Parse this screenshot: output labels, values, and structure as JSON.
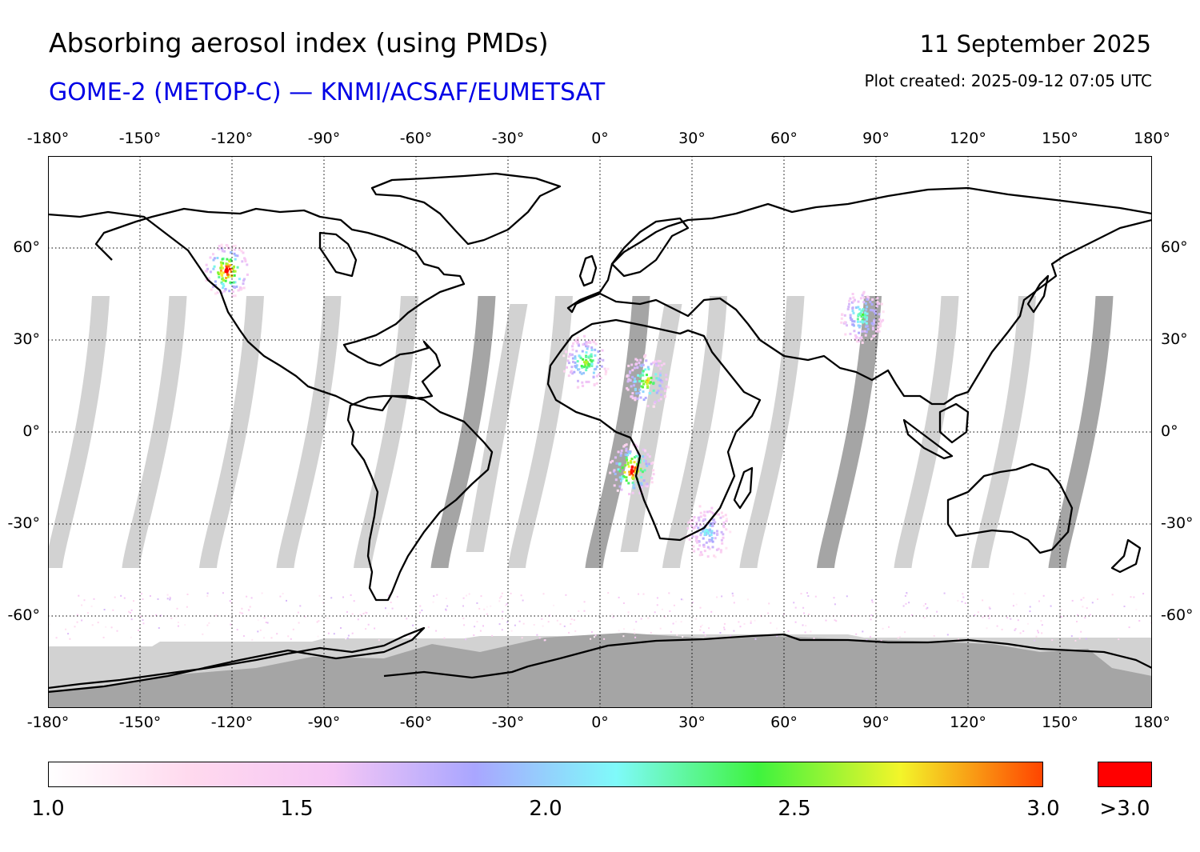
{
  "header": {
    "title": "Absorbing aerosol index (using PMDs)",
    "subtitle": "GOME-2 (METOP-C) — KNMI/ACSAF/EUMETSAT",
    "date": "11 September 2025",
    "created": "Plot created: 2025-09-12 07:05 UTC"
  },
  "map": {
    "lon_ticks": [
      "-180°",
      "-150°",
      "-120°",
      "-90°",
      "-60°",
      "-30°",
      "0°",
      "30°",
      "60°",
      "90°",
      "120°",
      "150°",
      "180°"
    ],
    "lat_ticks": [
      "60°",
      "30°",
      "0°",
      "-30°",
      "-60°"
    ],
    "lon_range": [
      -180,
      180
    ],
    "lat_range": [
      -90,
      90
    ],
    "grid": "dotted",
    "no_data_color": "#d2d2d2",
    "night_color": "#a5a5a5",
    "coastline_color": "#000000"
  },
  "colorbar": {
    "labels": [
      "1.0",
      "1.5",
      "2.0",
      "2.5",
      "3.0"
    ],
    "over_label": ">3.0",
    "range": [
      1.0,
      3.0
    ],
    "stops": [
      "#ffffff",
      "#ffd9ee",
      "#f5c6f5",
      "#a9a6ff",
      "#7ffafa",
      "#3ef33e",
      "#f3f52a",
      "#ff4500"
    ],
    "over_color": "#ff0000"
  },
  "features": [
    {
      "name": "southern-africa-plume",
      "lon": 10,
      "lat": -12,
      "value": 3.2
    },
    {
      "name": "west-africa-plume",
      "lon": -5,
      "lat": 23,
      "value": 2.6
    },
    {
      "name": "sahara-plume",
      "lon": 15,
      "lat": 17,
      "value": 2.8
    },
    {
      "name": "canada-fire",
      "lon": -122,
      "lat": 53,
      "value": 3.2
    },
    {
      "name": "central-asia-plume",
      "lon": 85,
      "lat": 38,
      "value": 2.4
    },
    {
      "name": "mozambique-plume",
      "lon": 35,
      "lat": -32,
      "value": 2.1
    }
  ]
}
